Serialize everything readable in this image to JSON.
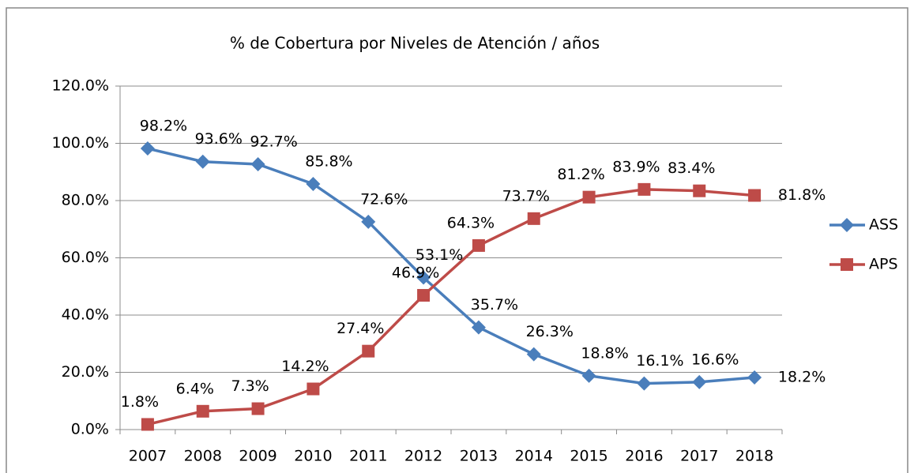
{
  "chart_data": {
    "type": "line",
    "title": "% de Cobertura por Niveles de Atención / años",
    "categories": [
      "2007",
      "2008",
      "2009",
      "2010",
      "2011",
      "2012",
      "2013",
      "2014",
      "2015",
      "2016",
      "2017",
      "2018"
    ],
    "series": [
      {
        "name": "ASS",
        "color": "#4a7ebb",
        "marker": "diamond",
        "values": [
          98.2,
          93.6,
          92.7,
          85.8,
          72.6,
          53.1,
          35.7,
          26.3,
          18.8,
          16.1,
          16.6,
          18.2
        ],
        "value_labels": [
          "98.2%",
          "93.6%",
          "92.7%",
          "85.8%",
          "72.6%",
          "53.1%",
          "35.7%",
          "26.3%",
          "18.8%",
          "16.1%",
          "16.6%",
          "18.2%"
        ]
      },
      {
        "name": "APS",
        "color": "#be4b48",
        "marker": "square",
        "values": [
          1.8,
          6.4,
          7.3,
          14.2,
          27.4,
          46.9,
          64.3,
          73.7,
          81.2,
          83.9,
          83.4,
          81.8
        ],
        "value_labels": [
          "1.8%",
          "6.4%",
          "7.3%",
          "14.2%",
          "27.4%",
          "46.9%",
          "64.3%",
          "73.7%",
          "81.2%",
          "83.9%",
          "83.4%",
          "81.8%"
        ]
      }
    ],
    "ylim": [
      0,
      120
    ],
    "yticks": [
      {
        "value": 0,
        "label": "0.0%"
      },
      {
        "value": 20,
        "label": "20.0%"
      },
      {
        "value": 40,
        "label": "40.0%"
      },
      {
        "value": 60,
        "label": "60.0%"
      },
      {
        "value": 80,
        "label": "80.0%"
      },
      {
        "value": 100,
        "label": "100.0%"
      },
      {
        "value": 120,
        "label": "120.0%"
      }
    ],
    "grid": true,
    "legend": "right"
  }
}
